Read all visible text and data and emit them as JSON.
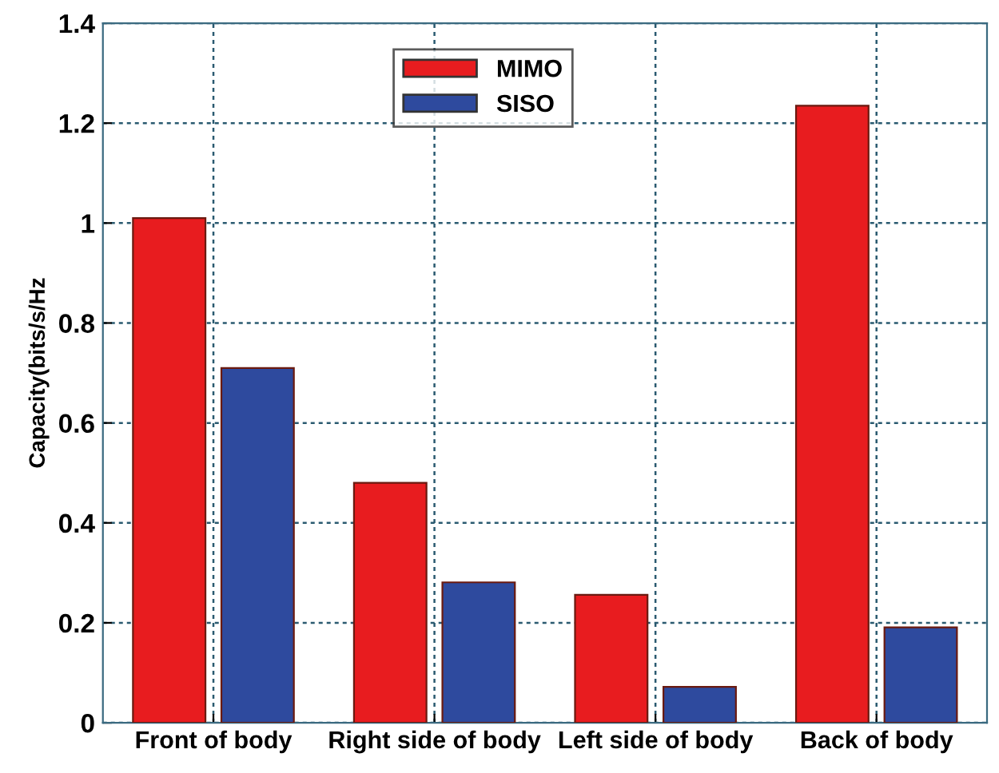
{
  "chart_data": {
    "type": "bar",
    "ylabel": "Capacity(bits/s/Hz",
    "categories": [
      "Front of body",
      "Right side of body",
      "Left side of body",
      "Back of body"
    ],
    "series": [
      {
        "name": "MIMO",
        "color": "#e81c1f",
        "values": [
          1.01,
          0.48,
          0.256,
          1.235
        ]
      },
      {
        "name": "SISO",
        "color": "#2e4a9e",
        "values": [
          0.71,
          0.281,
          0.072,
          0.191
        ]
      }
    ],
    "ylim": [
      0,
      1.4
    ],
    "yticks": [
      0,
      0.2,
      0.4,
      0.6,
      0.8,
      {
        "value": 1,
        "label": "1"
      },
      1.2,
      1.4
    ],
    "grid": true,
    "legend": "upper center"
  }
}
